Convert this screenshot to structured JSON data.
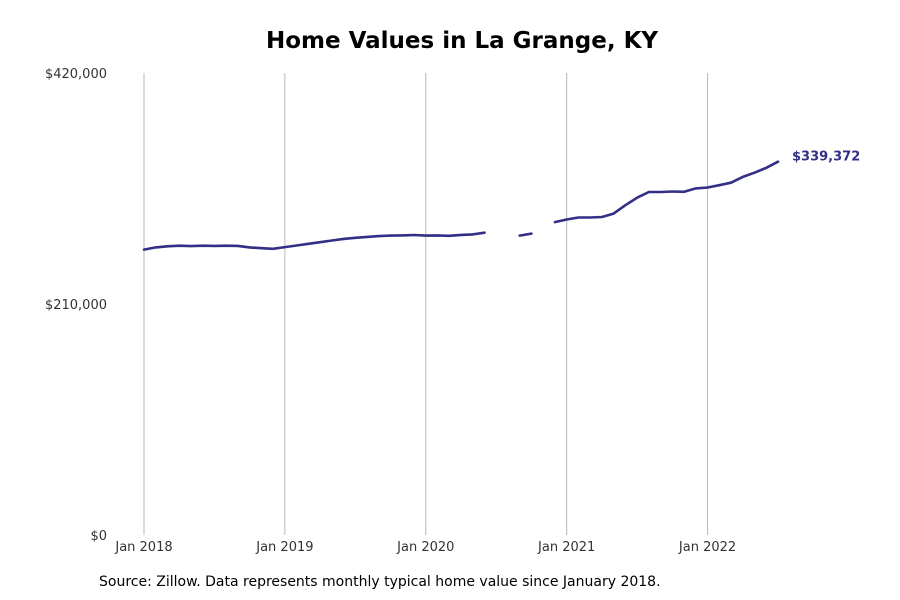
{
  "chart_data": {
    "type": "line",
    "title": "Home Values in La Grange, KY",
    "source": "Source: Zillow. Data represents monthly typical home value since January 2018.",
    "xlabel": "",
    "ylabel": "",
    "x_range": [
      "2018-01",
      "2022-07"
    ],
    "ylim": [
      0,
      420000
    ],
    "y_ticks": [
      {
        "value": 0,
        "label": "$0"
      },
      {
        "value": 210000,
        "label": "$210,000"
      },
      {
        "value": 420000,
        "label": "$420,000"
      }
    ],
    "x_ticks": [
      {
        "date": "2018-01",
        "label": "Jan 2018"
      },
      {
        "date": "2019-01",
        "label": "Jan 2019"
      },
      {
        "date": "2020-01",
        "label": "Jan 2020"
      },
      {
        "date": "2021-01",
        "label": "Jan 2021"
      },
      {
        "date": "2022-01",
        "label": "Jan 2022"
      }
    ],
    "grid": "vertical",
    "line_color": "#332f87",
    "grid_color": "#b8b8b8",
    "end_label": "$339,372",
    "series": [
      {
        "values": [
          {
            "date": "2018-01",
            "value": 259500
          },
          {
            "date": "2018-02",
            "value": 261500
          },
          {
            "date": "2018-03",
            "value": 262500
          },
          {
            "date": "2018-04",
            "value": 263000
          },
          {
            "date": "2018-05",
            "value": 262600
          },
          {
            "date": "2018-06",
            "value": 263000
          },
          {
            "date": "2018-07",
            "value": 262800
          },
          {
            "date": "2018-08",
            "value": 263000
          },
          {
            "date": "2018-09",
            "value": 262800
          },
          {
            "date": "2018-10",
            "value": 261500
          },
          {
            "date": "2018-11",
            "value": 260700
          },
          {
            "date": "2018-12",
            "value": 260200
          },
          {
            "date": "2019-01",
            "value": 261700
          },
          {
            "date": "2019-02",
            "value": 263200
          },
          {
            "date": "2019-03",
            "value": 264700
          },
          {
            "date": "2019-04",
            "value": 266200
          },
          {
            "date": "2019-05",
            "value": 267700
          },
          {
            "date": "2019-06",
            "value": 269200
          },
          {
            "date": "2019-07",
            "value": 270200
          },
          {
            "date": "2019-08",
            "value": 271000
          },
          {
            "date": "2019-09",
            "value": 271700
          },
          {
            "date": "2019-10",
            "value": 272200
          },
          {
            "date": "2019-11",
            "value": 272400
          },
          {
            "date": "2019-12",
            "value": 272700
          },
          {
            "date": "2020-01",
            "value": 272200
          },
          {
            "date": "2020-02",
            "value": 272400
          },
          {
            "date": "2020-03",
            "value": 272000
          },
          {
            "date": "2020-04",
            "value": 272800
          },
          {
            "date": "2020-05",
            "value": 273300
          },
          {
            "date": "2020-06",
            "value": 274800
          },
          {
            "date": "2020-07",
            "value": null
          },
          {
            "date": "2020-08",
            "value": null
          },
          {
            "date": "2020-09",
            "value": 272200
          },
          {
            "date": "2020-10",
            "value": 274000
          },
          {
            "date": "2020-11",
            "value": null
          },
          {
            "date": "2020-12",
            "value": 284500
          },
          {
            "date": "2021-01",
            "value": 286800
          },
          {
            "date": "2021-02",
            "value": 288600
          },
          {
            "date": "2021-03",
            "value": 288600
          },
          {
            "date": "2021-04",
            "value": 289100
          },
          {
            "date": "2021-05",
            "value": 292200
          },
          {
            "date": "2021-06",
            "value": 299800
          },
          {
            "date": "2021-07",
            "value": 306600
          },
          {
            "date": "2021-08",
            "value": 311800
          },
          {
            "date": "2021-09",
            "value": 311800
          },
          {
            "date": "2021-10",
            "value": 312300
          },
          {
            "date": "2021-11",
            "value": 312000
          },
          {
            "date": "2021-12",
            "value": 315100
          },
          {
            "date": "2022-01",
            "value": 315900
          },
          {
            "date": "2022-02",
            "value": 318000
          },
          {
            "date": "2022-03",
            "value": 320300
          },
          {
            "date": "2022-04",
            "value": 325500
          },
          {
            "date": "2022-05",
            "value": 329400
          },
          {
            "date": "2022-06",
            "value": 333800
          },
          {
            "date": "2022-07",
            "value": 339372
          }
        ]
      }
    ]
  }
}
